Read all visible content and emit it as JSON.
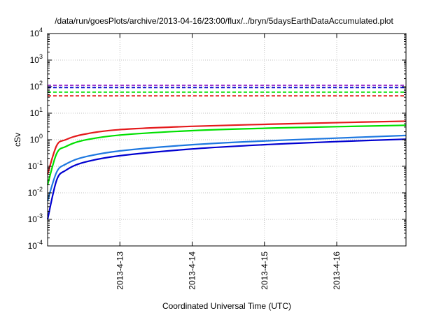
{
  "chart_data": {
    "type": "line",
    "title": "/data/run/goesPlots/archive/2013-04-16/23:00/flux/../bryn/5daysEarthDataAccumulated.plot",
    "xlabel": "Coordinated Universal Time (UTC)",
    "ylabel": "cSv",
    "y_scale": "log",
    "ylim": [
      0.0001,
      10000
    ],
    "y_ticks": [
      {
        "base": "10",
        "exp": "-4"
      },
      {
        "base": "10",
        "exp": "-3"
      },
      {
        "base": "10",
        "exp": "-2"
      },
      {
        "base": "10",
        "exp": "-1"
      },
      {
        "base": "10",
        "exp": "0"
      },
      {
        "base": "10",
        "exp": "1"
      },
      {
        "base": "10",
        "exp": "2"
      },
      {
        "base": "10",
        "exp": "3"
      },
      {
        "base": "10",
        "exp": "4"
      }
    ],
    "xlim": [
      "2013-04-12T00:00",
      "2013-04-16T23:00"
    ],
    "x_ticks": [
      "2013-4-13",
      "2013-4-14",
      "2013-4-15",
      "2013-4-16"
    ],
    "grid": true,
    "legend": "none",
    "series": [
      {
        "style": "solid",
        "color": "#e41a1c",
        "x": [
          "2013-04-12T00:00",
          "2013-04-12T03:00",
          "2013-04-12T06:00",
          "2013-04-12T12:00",
          "2013-04-13T00:00",
          "2013-04-14T00:00",
          "2013-04-15T00:00",
          "2013-04-16T00:00",
          "2013-04-16T23:00"
        ],
        "values": [
          0.05,
          0.6,
          1.0,
          1.6,
          2.4,
          3.2,
          3.8,
          4.4,
          5.0
        ]
      },
      {
        "style": "solid",
        "color": "#00e000",
        "x": [
          "2013-04-12T00:00",
          "2013-04-12T03:00",
          "2013-04-12T06:00",
          "2013-04-12T12:00",
          "2013-04-13T00:00",
          "2013-04-14T00:00",
          "2013-04-15T00:00",
          "2013-04-16T00:00",
          "2013-04-16T23:00"
        ],
        "values": [
          0.02,
          0.3,
          0.55,
          0.95,
          1.5,
          2.2,
          2.7,
          3.1,
          3.5
        ]
      },
      {
        "style": "solid",
        "color": "#1e78e0",
        "x": [
          "2013-04-12T00:00",
          "2013-04-12T03:00",
          "2013-04-12T06:00",
          "2013-04-12T12:00",
          "2013-04-13T00:00",
          "2013-04-14T00:00",
          "2013-04-15T00:00",
          "2013-04-16T00:00",
          "2013-04-16T23:00"
        ],
        "values": [
          0.005,
          0.06,
          0.12,
          0.22,
          0.38,
          0.65,
          0.9,
          1.15,
          1.45
        ]
      },
      {
        "style": "solid",
        "color": "#0000d0",
        "x": [
          "2013-04-12T00:00",
          "2013-04-12T03:00",
          "2013-04-12T06:00",
          "2013-04-12T12:00",
          "2013-04-13T00:00",
          "2013-04-14T00:00",
          "2013-04-15T00:00",
          "2013-04-16T00:00",
          "2013-04-16T23:00"
        ],
        "values": [
          0.001,
          0.03,
          0.07,
          0.14,
          0.25,
          0.45,
          0.65,
          0.85,
          1.05
        ]
      },
      {
        "style": "dashed",
        "color": "#e41a1c",
        "x": [
          "2013-04-12T00:00",
          "2013-04-16T23:00"
        ],
        "values": [
          45,
          45
        ]
      },
      {
        "style": "dashed",
        "color": "#00e000",
        "x": [
          "2013-04-12T00:00",
          "2013-04-16T23:00"
        ],
        "values": [
          62,
          62
        ]
      },
      {
        "style": "dashed",
        "color": "#0000d0",
        "x": [
          "2013-04-12T00:00",
          "2013-04-16T23:00"
        ],
        "values": [
          92,
          92
        ]
      },
      {
        "style": "dashed",
        "color": "#9933cc",
        "x": [
          "2013-04-12T00:00",
          "2013-04-16T23:00"
        ],
        "values": [
          112,
          112
        ]
      }
    ]
  }
}
